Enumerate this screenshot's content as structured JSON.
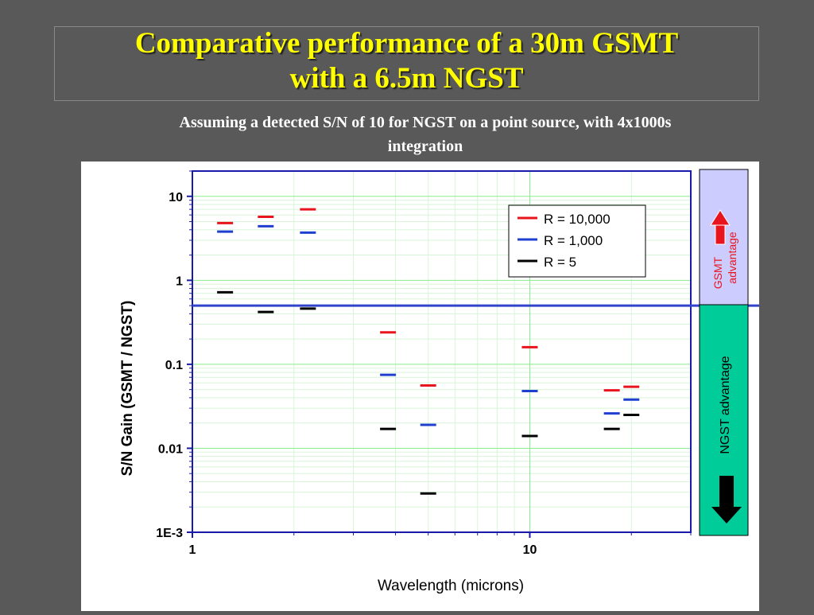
{
  "slide": {
    "title_line1": "Comparative performance of  a 30m GSMT",
    "title_line2": "with a 6.5m NGST",
    "subtitle_line1": "Assuming a detected S/N of 10 for NGST on a point source, with 4x1000s",
    "subtitle_line2": "integration"
  },
  "side_labels": {
    "gsmt_line1": "GSMT",
    "gsmt_line2": "advantage",
    "ngst": "NGST advantage"
  },
  "colors": {
    "background": "#595959",
    "title": "#ffff00",
    "gsmt_box": "#ccccff",
    "ngst_box": "#00cc99",
    "red": "#e8141e",
    "blue": "#1f3fd0",
    "black": "#000000",
    "axis": "#1a1aaa",
    "grid": "#88ee88",
    "threshold": "#3344cc"
  },
  "chart_data": {
    "type": "scatter",
    "marker": "horizontal-dash",
    "xlabel": "Wavelength (microns)",
    "ylabel": "S/N Gain (GSMT / NGST)",
    "x_scale": "log",
    "y_scale": "log",
    "xlim": [
      1,
      30
    ],
    "ylim": [
      0.001,
      20
    ],
    "x_ticks": [
      {
        "value": 1,
        "label": "1"
      },
      {
        "value": 10,
        "label": "10"
      }
    ],
    "y_ticks": [
      {
        "value": 10,
        "label": "10"
      },
      {
        "value": 1,
        "label": "1"
      },
      {
        "value": 0.1,
        "label": "0.1"
      },
      {
        "value": 0.01,
        "label": "0.01"
      },
      {
        "value": 0.001,
        "label": "1E-3"
      }
    ],
    "grid": true,
    "legend_position": "top-right",
    "threshold_line": 0.5,
    "series": [
      {
        "name": "R =  10,000",
        "color": "#e8141e",
        "points": [
          [
            1.25,
            4.8
          ],
          [
            1.65,
            5.7
          ],
          [
            2.2,
            7.0
          ],
          [
            3.8,
            0.24
          ],
          [
            5.0,
            0.056
          ],
          [
            10.0,
            0.16
          ],
          [
            17.5,
            0.049
          ],
          [
            20.0,
            0.054
          ]
        ]
      },
      {
        "name": "R =  1,000",
        "color": "#1f3fd0",
        "points": [
          [
            1.25,
            3.8
          ],
          [
            1.65,
            4.4
          ],
          [
            2.2,
            3.7
          ],
          [
            3.8,
            0.075
          ],
          [
            5.0,
            0.019
          ],
          [
            10.0,
            0.048
          ],
          [
            17.5,
            0.026
          ],
          [
            20.0,
            0.038
          ]
        ]
      },
      {
        "name": "R =  5",
        "color": "#000000",
        "points": [
          [
            1.25,
            0.72
          ],
          [
            1.65,
            0.42
          ],
          [
            2.2,
            0.46
          ],
          [
            3.8,
            0.017
          ],
          [
            5.0,
            0.0029
          ],
          [
            10.0,
            0.014
          ],
          [
            17.5,
            0.017
          ],
          [
            20.0,
            0.025
          ]
        ]
      }
    ]
  }
}
